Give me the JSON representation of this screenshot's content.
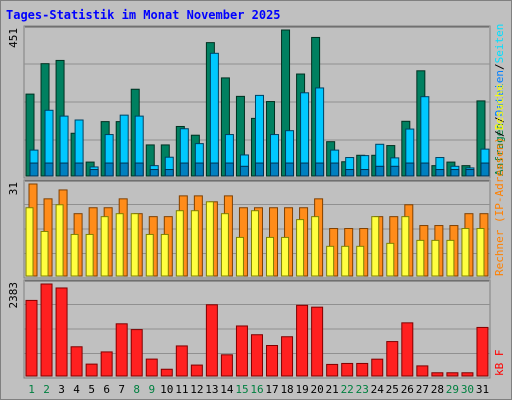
{
  "chart_data": {
    "type": "bar",
    "title": "Tages-Statistik im Monat November 2025",
    "categories": [
      "1",
      "2",
      "3",
      "4",
      "5",
      "6",
      "7",
      "8",
      "9",
      "10",
      "11",
      "12",
      "13",
      "14",
      "15",
      "16",
      "17",
      "18",
      "19",
      "20",
      "21",
      "22",
      "23",
      "24",
      "25",
      "26",
      "27",
      "28",
      "29",
      "30",
      "31"
    ],
    "weekend_days": [
      "1",
      "2",
      "8",
      "9",
      "15",
      "16",
      "22",
      "23",
      "29",
      "30"
    ],
    "grid": true,
    "panels": [
      {
        "id": "pages",
        "ymax_label": "451",
        "ymax": 451,
        "right_label_parts": [
          {
            "text": "Anfragen",
            "color": "#008040"
          },
          {
            "text": "/",
            "color": "#000000"
          },
          {
            "text": "Dateien",
            "color": "#0080ff"
          },
          {
            "text": "/",
            "color": "#000000"
          },
          {
            "text": "Seiten",
            "color": "#00e0ff"
          }
        ],
        "series": [
          {
            "name": "Anfragen",
            "color": "#008060",
            "values": [
              253,
              347,
              357,
              132,
              43,
              168,
              168,
              268,
              96,
              96,
              153,
              126,
              412,
              303,
              246,
              178,
              230,
              451,
              315,
              428,
              106,
              44,
              64,
              64,
              94,
              169,
              325,
              32,
              43,
              32,
              232
            ]
          },
          {
            "name": "Dateien",
            "color": "#00c8ff",
            "values": [
              80,
              203,
              185,
              173,
              28,
              128,
              188,
              185,
              32,
              58,
              146,
              100,
              379,
              128,
              65,
              249,
              128,
              140,
              257,
              272,
              80,
              57,
              63,
              98,
              56,
              145,
              245,
              57,
              30,
              25,
              83
            ]
          },
          {
            "name": "Seiten",
            "color": "#0080c0",
            "values": [
              40,
              40,
              40,
              40,
              20,
              40,
              40,
              40,
              20,
              20,
              40,
              40,
              40,
              40,
              30,
              40,
              40,
              40,
              40,
              40,
              40,
              20,
              20,
              30,
              30,
              40,
              40,
              20,
              20,
              20,
              40
            ]
          }
        ]
      },
      {
        "id": "visits",
        "ymax_label": "31",
        "ymax": 31,
        "right_label_parts": [
          {
            "text": "Rechner (IP-Adressen)",
            "color": "#ff8000"
          },
          {
            "text": "/",
            "color": "#000000"
          },
          {
            "text": "Besuche",
            "color": "#ffff00"
          }
        ],
        "series": [
          {
            "name": "Rechner (IP-Adressen)",
            "color": "#ff8c1a",
            "values": [
              31,
              26,
              29,
              21,
              23,
              23,
              26,
              21,
              20,
              20,
              27,
              27,
              25,
              27,
              23,
              23,
              23,
              23,
              23,
              26,
              16,
              16,
              16,
              20,
              20,
              24,
              17,
              17,
              17,
              21,
              21
            ]
          },
          {
            "name": "Besuche",
            "color": "#ffff40",
            "values": [
              23,
              15,
              24,
              14,
              14,
              20,
              21,
              21,
              14,
              14,
              22,
              22,
              25,
              21,
              13,
              22,
              13,
              13,
              19,
              20,
              10,
              10,
              10,
              20,
              11,
              20,
              12,
              12,
              12,
              16,
              16
            ]
          }
        ]
      },
      {
        "id": "kb",
        "ymax_label": "2383",
        "ymax": 2383,
        "right_label_parts": [
          {
            "text": "kB F",
            "color": "#ff0000"
          }
        ],
        "series": [
          {
            "name": "kB F",
            "color": "#ff2020",
            "values": [
              1958,
              2383,
              2280,
              757,
              308,
              624,
              1352,
              1202,
              438,
              175,
              779,
              283,
              1845,
              549,
              1296,
              1069,
              790,
              1017,
              1831,
              1783,
              300,
              325,
              325,
              436,
              892,
              1377,
              262,
              84,
              84,
              84,
              1258
            ]
          }
        ]
      }
    ]
  }
}
